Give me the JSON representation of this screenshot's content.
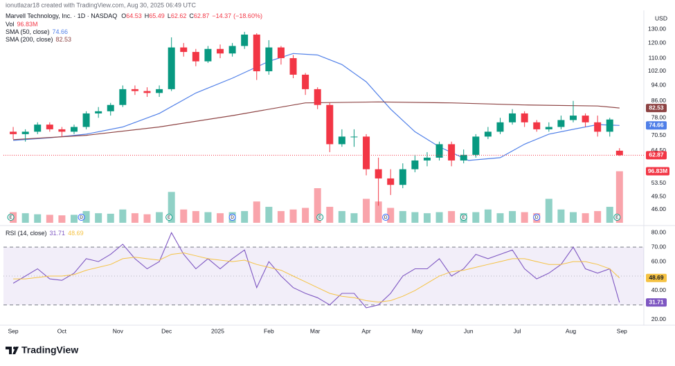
{
  "header": {
    "credit": "ionutlazar18 created with TradingView.com, Aug 30, 2025 06:49 UTC"
  },
  "footer": {
    "logo": "TradingView"
  },
  "chart_data": [
    {
      "type": "candlestick",
      "symbol": "Marvell Technology, Inc. · 1D · NASDAQ",
      "ohlc_labels": [
        "O",
        "H",
        "L",
        "C"
      ],
      "change": {
        "value": -14.37,
        "label": "−14.37"
      },
      "change_pct": {
        "value": -18.6,
        "label": "(−18.60%)"
      },
      "currency": "USD",
      "log_scale": true,
      "up_color": "#089981",
      "down_color": "#f23645",
      "x": [
        0,
        5,
        10,
        15,
        20,
        25,
        30,
        35,
        40,
        45,
        50,
        55,
        60,
        65,
        70,
        75,
        80,
        85,
        90,
        95,
        100,
        105,
        110,
        115,
        120,
        125,
        130,
        135,
        140,
        145,
        150,
        155,
        160,
        165,
        170,
        175,
        180,
        185,
        190,
        195,
        200,
        205,
        210,
        215,
        220,
        225,
        230,
        235,
        240,
        245,
        249
      ],
      "open": [
        72,
        71,
        72,
        75,
        73,
        72,
        74,
        80,
        81,
        84,
        92,
        91,
        90,
        92,
        117,
        114,
        108,
        116,
        113,
        118,
        126,
        102,
        117,
        110,
        100,
        92,
        84,
        67,
        70,
        70,
        58,
        55,
        53,
        58,
        61,
        62,
        67,
        61,
        63,
        70,
        72,
        76,
        80,
        76,
        73,
        74,
        77,
        79,
        76,
        72,
        64.53
      ],
      "high": [
        74,
        73,
        76,
        76,
        74,
        75,
        81,
        83,
        85,
        94,
        94,
        93,
        94,
        124,
        120,
        116,
        118,
        119,
        120,
        128,
        127,
        122,
        118,
        112,
        101,
        93,
        85,
        73,
        73,
        71,
        62,
        58,
        60,
        63,
        64,
        68,
        68,
        65,
        71,
        74,
        78,
        82,
        81,
        77,
        76,
        79,
        86,
        80,
        79,
        78,
        65.49
      ],
      "low": [
        69,
        68,
        71,
        72,
        70,
        71,
        73,
        78,
        79,
        83,
        89,
        88,
        88,
        91,
        111,
        105,
        107,
        110,
        111,
        116,
        97,
        100,
        106,
        98,
        89,
        82,
        64,
        66,
        66,
        56,
        47,
        50,
        52,
        57,
        59,
        61,
        59,
        60,
        62,
        69,
        71,
        75,
        74,
        72,
        72,
        73,
        76,
        74,
        70,
        70,
        62.62
      ],
      "close": [
        71,
        72,
        75,
        73,
        72,
        74,
        80,
        81,
        84,
        92,
        91,
        90,
        92,
        117,
        114,
        108,
        116,
        113,
        118,
        126,
        102,
        117,
        110,
        100,
        92,
        84,
        67,
        70,
        70,
        58,
        55,
        53,
        58,
        61,
        62,
        67,
        61,
        63,
        70,
        72,
        76,
        80,
        76,
        73,
        74,
        77,
        79,
        76,
        72,
        77.24,
        62.87
      ],
      "xlim": [
        -4,
        259
      ],
      "xticks": [
        {
          "value": 0,
          "label": "Sep"
        },
        {
          "value": 20,
          "label": "Oct"
        },
        {
          "value": 43,
          "label": "Nov"
        },
        {
          "value": 63,
          "label": "Dec"
        },
        {
          "value": 84,
          "label": "2025"
        },
        {
          "value": 105,
          "label": "Feb"
        },
        {
          "value": 124,
          "label": "Mar"
        },
        {
          "value": 145,
          "label": "Apr"
        },
        {
          "value": 166,
          "label": "May"
        },
        {
          "value": 187,
          "label": "Jun"
        },
        {
          "value": 207,
          "label": "Jul"
        },
        {
          "value": 229,
          "label": "Aug"
        },
        {
          "value": 250,
          "label": "Sep"
        }
      ],
      "ylim": [
        42.6,
        142
      ],
      "yticks": [
        {
          "value": 130,
          "label": "130.00"
        },
        {
          "value": 120,
          "label": "120.00"
        },
        {
          "value": 110,
          "label": "110.00"
        },
        {
          "value": 102,
          "label": "102.00"
        },
        {
          "value": 94,
          "label": "94.00"
        },
        {
          "value": 86,
          "label": "86.00"
        },
        {
          "value": 78,
          "label": "78.00"
        },
        {
          "value": 70.5,
          "label": "70.50"
        },
        {
          "value": 64.5,
          "label": "64.50"
        },
        {
          "value": 53.5,
          "label": "53.50"
        },
        {
          "value": 49.5,
          "label": "49.50"
        },
        {
          "value": 46,
          "label": "46.00"
        }
      ],
      "volume": {
        "name": "Vol",
        "ylim": [
          0,
          130
        ],
        "values": [
          20,
          18,
          16,
          15,
          14,
          15,
          22,
          18,
          17,
          25,
          18,
          16,
          20,
          58,
          25,
          22,
          20,
          18,
          20,
          22,
          40,
          30,
          22,
          25,
          28,
          65,
          30,
          22,
          18,
          45,
          40,
          28,
          22,
          20,
          18,
          20,
          22,
          18,
          20,
          25,
          18,
          22,
          20,
          18,
          45,
          25,
          20,
          18,
          22,
          30,
          96.83
        ],
        "value_labels": [
          null,
          null,
          null,
          null,
          null,
          null,
          null,
          null,
          null,
          null,
          null,
          null,
          null,
          null,
          null,
          null,
          null,
          null,
          null,
          null,
          null,
          null,
          null,
          null,
          null,
          null,
          null,
          null,
          null,
          null,
          null,
          null,
          null,
          null,
          null,
          null,
          null,
          null,
          null,
          null,
          null,
          null,
          null,
          null,
          null,
          null,
          null,
          null,
          null,
          null,
          "96.83M"
        ]
      },
      "overlays": [
        {
          "name": "SMA (50, close)",
          "color": "#4f7fe8",
          "x": [
            0,
            15,
            30,
            45,
            60,
            75,
            90,
            105,
            115,
            125,
            135,
            145,
            155,
            165,
            175,
            187,
            200,
            210,
            220,
            230,
            240,
            249
          ],
          "values": [
            68.5,
            69.5,
            71,
            74,
            80,
            90,
            98,
            108,
            113,
            112,
            106,
            96,
            82,
            72,
            66,
            61,
            62,
            67,
            71,
            73,
            75,
            74.66
          ]
        },
        {
          "name": "SMA (200, close)",
          "color": "#8d4343",
          "x": [
            0,
            30,
            60,
            90,
            120,
            150,
            180,
            210,
            240,
            249
          ],
          "values": [
            68.8,
            70.5,
            74,
            79,
            85,
            85.5,
            85,
            84,
            83.5,
            82.53
          ]
        }
      ],
      "events": [
        {
          "label": "E",
          "x": -1
        },
        {
          "label": "D",
          "x": 28
        },
        {
          "label": "E",
          "x": 64
        },
        {
          "label": "D",
          "x": 90
        },
        {
          "label": "E",
          "x": 126
        },
        {
          "label": "D",
          "x": 153
        },
        {
          "label": "E",
          "x": 185
        },
        {
          "label": "D",
          "x": 215
        },
        {
          "label": "E",
          "x": 248
        }
      ]
    },
    {
      "type": "line",
      "title": "RSI (14, close)",
      "x": [
        0,
        5,
        10,
        15,
        20,
        25,
        30,
        35,
        40,
        45,
        50,
        55,
        60,
        65,
        70,
        75,
        80,
        85,
        90,
        95,
        100,
        105,
        110,
        115,
        120,
        125,
        130,
        135,
        140,
        145,
        150,
        155,
        160,
        165,
        170,
        175,
        180,
        185,
        190,
        195,
        200,
        205,
        210,
        215,
        220,
        225,
        230,
        235,
        240,
        245,
        249
      ],
      "series": [
        {
          "color": "#7e57c2",
          "values": [
            45,
            50,
            55,
            48,
            47,
            52,
            62,
            60,
            65,
            72,
            62,
            55,
            60,
            80,
            65,
            55,
            62,
            55,
            62,
            68,
            42,
            60,
            50,
            42,
            38,
            35,
            30,
            38,
            38,
            28,
            30,
            38,
            50,
            55,
            55,
            62,
            50,
            55,
            65,
            62,
            65,
            68,
            55,
            48,
            52,
            58,
            70,
            55,
            52,
            55,
            31.71
          ]
        },
        {
          "color": "#f5c242",
          "values": [
            48,
            48,
            49,
            50,
            50,
            51,
            54,
            56,
            58,
            62,
            63,
            62,
            61,
            65,
            66,
            64,
            62,
            61,
            60,
            61,
            58,
            56,
            54,
            50,
            46,
            42,
            38,
            36,
            35,
            33,
            32,
            33,
            36,
            40,
            45,
            50,
            53,
            54,
            56,
            58,
            60,
            62,
            62,
            60,
            58,
            58,
            60,
            60,
            58,
            55,
            48.69
          ]
        }
      ],
      "ylim": [
        16,
        83
      ],
      "yticks": [
        {
          "value": 80,
          "label": "80.00"
        },
        {
          "value": 70,
          "label": "70.00"
        },
        {
          "value": 60,
          "label": "60.00"
        },
        {
          "value": 40,
          "label": "40.00"
        },
        {
          "value": 20,
          "label": "20.00"
        }
      ],
      "band": [
        30,
        70
      ],
      "midline": 50
    }
  ]
}
